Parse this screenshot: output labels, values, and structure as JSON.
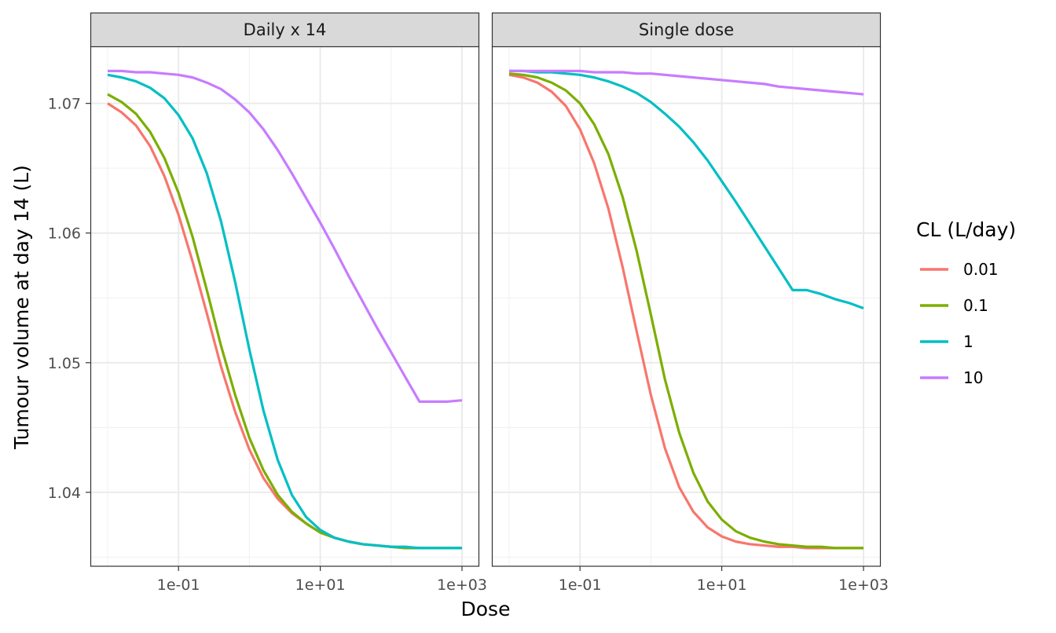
{
  "chart_data": {
    "type": "line",
    "xlabel": "Dose",
    "ylabel": "Tumour volume at day 14 (L)",
    "x_scale": "log10",
    "xlim": [
      0.01,
      1000
    ],
    "ylim": [
      1.0343,
      1.0744
    ],
    "x_ticks": [
      {
        "value": 0.1,
        "label": "1e-01"
      },
      {
        "value": 10,
        "label": "1e+01"
      },
      {
        "value": 1000,
        "label": "1e+03"
      }
    ],
    "y_ticks": [
      {
        "value": 1.04,
        "label": "1.04"
      },
      {
        "value": 1.05,
        "label": "1.05"
      },
      {
        "value": 1.06,
        "label": "1.06"
      },
      {
        "value": 1.07,
        "label": "1.07"
      }
    ],
    "grid": true,
    "legend": {
      "title": "CL (L/day)",
      "position": "right",
      "entries": [
        {
          "label": "0.01",
          "color": "#F8766D"
        },
        {
          "label": "0.1",
          "color": "#7CAE00"
        },
        {
          "label": "1",
          "color": "#00BFC4"
        },
        {
          "label": "10",
          "color": "#C77CFF"
        }
      ]
    },
    "panels": [
      {
        "title": "Daily x 14",
        "x": [
          0.01,
          0.0158,
          0.0251,
          0.0398,
          0.0631,
          0.1,
          0.158,
          0.251,
          0.398,
          0.631,
          1,
          1.58,
          2.51,
          3.98,
          6.31,
          10,
          15.8,
          25.1,
          39.8,
          63.1,
          100,
          158,
          251,
          398,
          631,
          1000
        ],
        "series": [
          {
            "name": "0.01",
            "color": "#F8766D",
            "values": [
              1.07,
              1.0693,
              1.0683,
              1.0667,
              1.0644,
              1.0614,
              1.0578,
              1.0538,
              1.0497,
              1.0462,
              1.0433,
              1.0411,
              1.0395,
              1.0384,
              1.0376,
              1.0369,
              1.0365,
              1.0362,
              1.036,
              1.0359,
              1.0358,
              1.0357,
              1.0357,
              1.0357,
              1.0357,
              1.0357
            ]
          },
          {
            "name": "0.1",
            "color": "#7CAE00",
            "values": [
              1.0707,
              1.0701,
              1.0692,
              1.0678,
              1.0658,
              1.0631,
              1.0597,
              1.0556,
              1.0513,
              1.0475,
              1.0442,
              1.0417,
              1.0398,
              1.0385,
              1.0376,
              1.0369,
              1.0365,
              1.0362,
              1.036,
              1.0359,
              1.0358,
              1.0357,
              1.0357,
              1.0357,
              1.0357,
              1.0357
            ]
          },
          {
            "name": "1",
            "color": "#00BFC4",
            "values": [
              1.0722,
              1.072,
              1.0717,
              1.0712,
              1.0704,
              1.0691,
              1.0673,
              1.0646,
              1.0609,
              1.0562,
              1.051,
              1.0463,
              1.0425,
              1.0398,
              1.0381,
              1.0371,
              1.0365,
              1.0362,
              1.036,
              1.0359,
              1.0358,
              1.0358,
              1.0357,
              1.0357,
              1.0357,
              1.0357
            ]
          },
          {
            "name": "10",
            "color": "#C77CFF",
            "values": [
              1.0725,
              1.0725,
              1.0724,
              1.0724,
              1.0723,
              1.0722,
              1.072,
              1.0716,
              1.0711,
              1.0703,
              1.0693,
              1.068,
              1.0664,
              1.0646,
              1.0627,
              1.0608,
              1.0588,
              1.0567,
              1.0547,
              1.0527,
              1.0508,
              1.0489,
              1.047,
              1.047,
              1.047,
              1.0471
            ]
          }
        ]
      },
      {
        "title": "Single dose",
        "x": [
          0.01,
          0.0158,
          0.0251,
          0.0398,
          0.0631,
          0.1,
          0.158,
          0.251,
          0.398,
          0.631,
          1,
          1.58,
          2.51,
          3.98,
          6.31,
          10,
          15.8,
          25.1,
          39.8,
          63.1,
          100,
          158,
          251,
          398,
          631,
          1000
        ],
        "series": [
          {
            "name": "0.01",
            "color": "#F8766D",
            "values": [
              1.0722,
              1.072,
              1.0716,
              1.0709,
              1.0698,
              1.068,
              1.0654,
              1.0619,
              1.0574,
              1.0524,
              1.0475,
              1.0434,
              1.0404,
              1.0385,
              1.0373,
              1.0366,
              1.0362,
              1.036,
              1.0359,
              1.0358,
              1.0358,
              1.0357,
              1.0357,
              1.0357,
              1.0357,
              1.0357
            ]
          },
          {
            "name": "0.1",
            "color": "#7CAE00",
            "values": [
              1.0723,
              1.0722,
              1.072,
              1.0716,
              1.071,
              1.07,
              1.0684,
              1.0661,
              1.0628,
              1.0586,
              1.0537,
              1.0487,
              1.0446,
              1.0415,
              1.0393,
              1.0379,
              1.037,
              1.0365,
              1.0362,
              1.036,
              1.0359,
              1.0358,
              1.0358,
              1.0357,
              1.0357,
              1.0357
            ]
          },
          {
            "name": "1",
            "color": "#00BFC4",
            "values": [
              1.0725,
              1.0725,
              1.0724,
              1.0724,
              1.0723,
              1.0722,
              1.072,
              1.0717,
              1.0713,
              1.0708,
              1.0701,
              1.0692,
              1.0682,
              1.067,
              1.0656,
              1.064,
              1.0624,
              1.0607,
              1.059,
              1.0573,
              1.0556,
              1.0556,
              1.0553,
              1.0549,
              1.0546,
              1.0542
            ]
          },
          {
            "name": "10",
            "color": "#C77CFF",
            "values": [
              1.0725,
              1.0725,
              1.0725,
              1.0725,
              1.0725,
              1.0725,
              1.0724,
              1.0724,
              1.0724,
              1.0723,
              1.0723,
              1.0722,
              1.0721,
              1.072,
              1.0719,
              1.0718,
              1.0717,
              1.0716,
              1.0715,
              1.0713,
              1.0712,
              1.0711,
              1.071,
              1.0709,
              1.0708,
              1.0707
            ]
          }
        ]
      }
    ]
  }
}
